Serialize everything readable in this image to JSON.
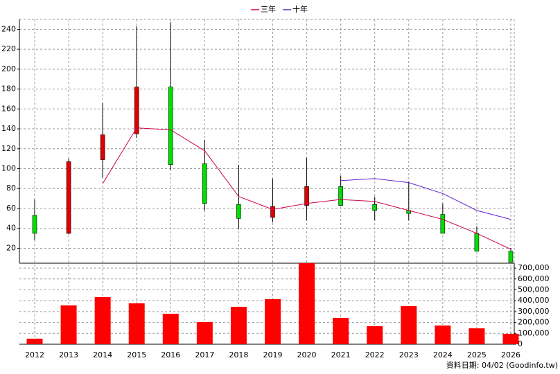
{
  "chart_data": {
    "type": "candlestick",
    "categories": [
      "2012",
      "2013",
      "2014",
      "2015",
      "2016",
      "2017",
      "2018",
      "2019",
      "2020",
      "2021",
      "2022",
      "2023",
      "2024",
      "2025",
      "2026"
    ],
    "open": [
      53,
      35,
      109,
      135,
      182,
      105,
      64,
      51,
      63,
      82,
      64,
      58,
      54,
      35,
      17
    ],
    "high": [
      69,
      110,
      166,
      243,
      247,
      129,
      104,
      90,
      111,
      93,
      72,
      87,
      65,
      42,
      20
    ],
    "low": [
      28,
      34,
      91,
      131,
      99,
      58,
      39,
      46,
      48,
      63,
      48,
      48,
      35,
      17,
      6
    ],
    "close": [
      35,
      107,
      134,
      182,
      104,
      65,
      50,
      62,
      82,
      63,
      58,
      55,
      35,
      17,
      6
    ],
    "up_color": "#e00000",
    "down_color": "#00e000",
    "lines": [
      {
        "name": "三年",
        "color": "#d00050",
        "values": [
          null,
          null,
          85,
          141,
          139,
          118,
          72,
          59,
          65,
          69,
          67,
          58,
          49,
          35,
          19
        ]
      },
      {
        "name": "十年",
        "color": "#6020d0",
        "values": [
          null,
          null,
          null,
          null,
          null,
          null,
          null,
          null,
          null,
          88,
          90,
          86,
          75,
          58,
          49
        ]
      }
    ],
    "ylim": [
      5,
      250
    ],
    "yticks": [
      20,
      40,
      60,
      80,
      100,
      120,
      140,
      160,
      180,
      200,
      220,
      240
    ],
    "grid": true,
    "volume": {
      "type": "bar",
      "color": "#ff0000",
      "values": [
        51000,
        357000,
        433000,
        376000,
        280000,
        204000,
        344000,
        414000,
        745000,
        242000,
        166000,
        350000,
        172000,
        146000,
        96000
      ],
      "ylim": [
        0,
        745000
      ],
      "yticks": [
        {
          "value": 0,
          "label": "0"
        },
        {
          "value": 100000,
          "label": "100,000"
        },
        {
          "value": 200000,
          "label": "200,000"
        },
        {
          "value": 300000,
          "label": "300,000"
        },
        {
          "value": 400000,
          "label": "400,000"
        },
        {
          "value": 500000,
          "label": "500,000"
        },
        {
          "value": 600000,
          "label": "600,000"
        },
        {
          "value": 700000,
          "label": "700,000"
        }
      ]
    },
    "note": "資料日期: 04/02 (Goodinfo.tw)"
  }
}
